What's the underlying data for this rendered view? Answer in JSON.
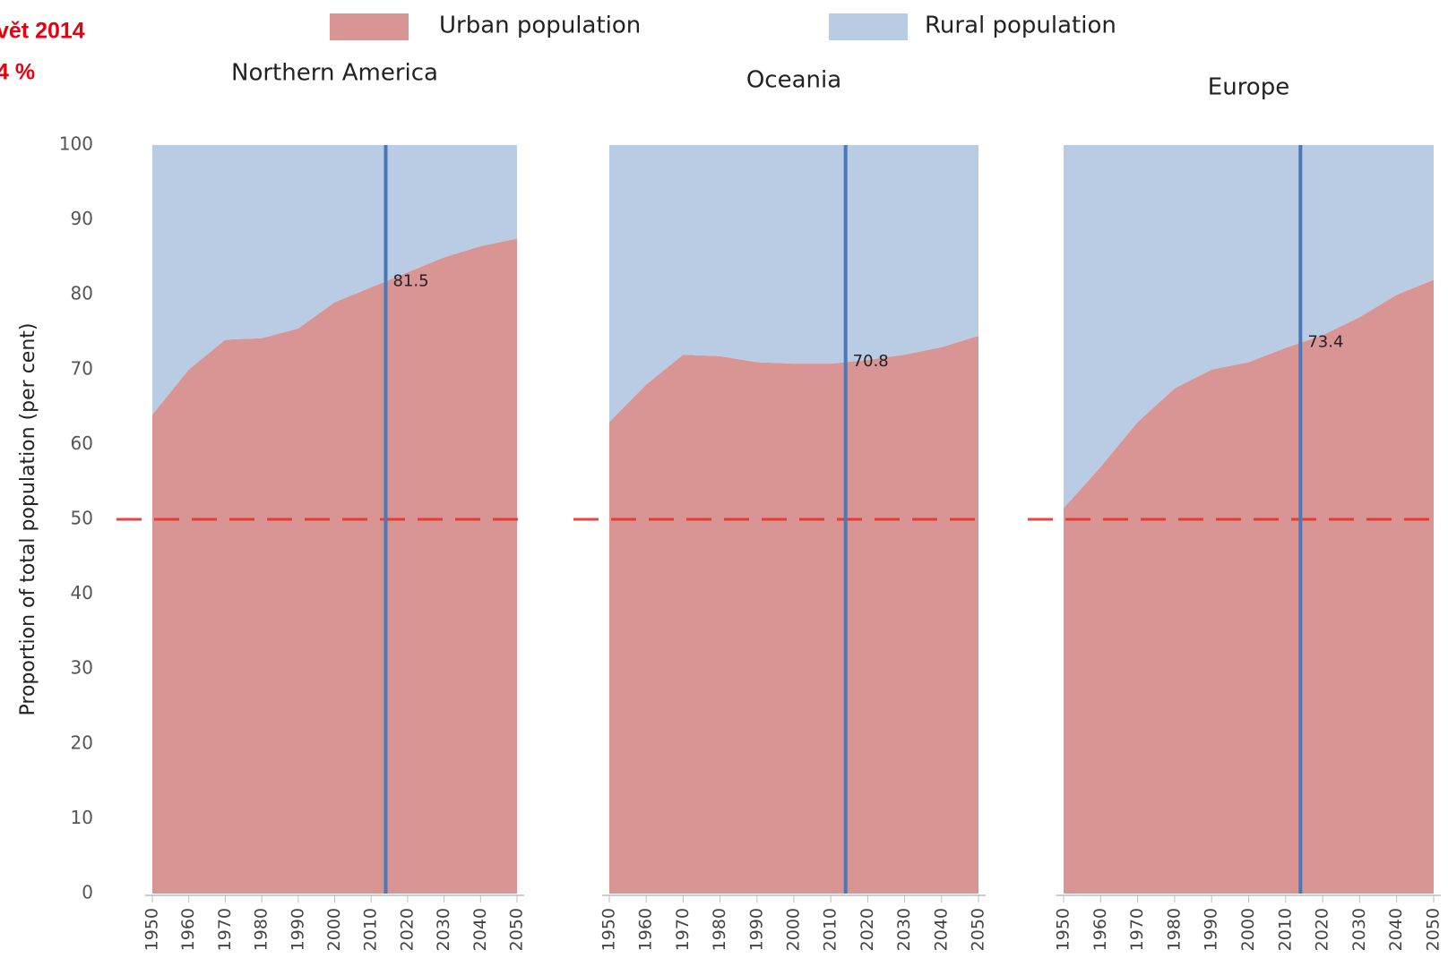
{
  "header": {
    "lines": [
      "vět 2014",
      "4 %"
    ]
  },
  "y_axis_label": "Proportion of total population (per cent)",
  "chart_data": [
    {
      "type": "area",
      "title": "Northern America",
      "x": [
        1950,
        1960,
        1970,
        1980,
        1990,
        2000,
        2010,
        2020,
        2030,
        2040,
        2050
      ],
      "series": [
        {
          "name": "Urban population",
          "color": "#d99494",
          "values": [
            64,
            70,
            74,
            74.2,
            75.5,
            79,
            81,
            83,
            85,
            86.5,
            87.5
          ]
        },
        {
          "name": "Rural population",
          "color": "#b9cce4",
          "values": [
            36,
            30,
            26,
            25.8,
            24.5,
            21,
            19,
            17,
            15,
            13.5,
            12.5
          ]
        }
      ],
      "xlim": [
        1950,
        2050
      ],
      "xticks": [
        1950,
        1960,
        1970,
        1980,
        1990,
        2000,
        2010,
        2020,
        2030,
        2040,
        2050
      ],
      "ylim": [
        0,
        100
      ],
      "yticks": [
        0,
        10,
        20,
        30,
        40,
        50,
        60,
        70,
        80,
        90,
        100
      ],
      "marker": {
        "x": 2014,
        "value": 81.5,
        "color": "#4a78b8"
      },
      "reference_line": {
        "value": 50,
        "color": "#e8332a"
      }
    },
    {
      "type": "area",
      "title": "Oceania",
      "x": [
        1950,
        1960,
        1970,
        1980,
        1990,
        2000,
        2010,
        2020,
        2030,
        2040,
        2050
      ],
      "series": [
        {
          "name": "Urban population",
          "color": "#d99494",
          "values": [
            63,
            68,
            72,
            71.8,
            71,
            70.8,
            70.8,
            71.3,
            72,
            73,
            74.5
          ]
        },
        {
          "name": "Rural population",
          "color": "#b9cce4",
          "values": [
            37,
            32,
            28,
            28.2,
            29,
            29.2,
            29.2,
            28.7,
            28,
            27,
            25.5
          ]
        }
      ],
      "xlim": [
        1950,
        2050
      ],
      "xticks": [
        1950,
        1960,
        1970,
        1980,
        1990,
        2000,
        2010,
        2020,
        2030,
        2040,
        2050
      ],
      "ylim": [
        0,
        100
      ],
      "marker": {
        "x": 2014,
        "value": 70.8,
        "color": "#4a78b8"
      },
      "reference_line": {
        "value": 50,
        "color": "#e8332a"
      }
    },
    {
      "type": "area",
      "title": "Europe",
      "x": [
        1950,
        1960,
        1970,
        1980,
        1990,
        2000,
        2010,
        2020,
        2030,
        2040,
        2050
      ],
      "series": [
        {
          "name": "Urban population",
          "color": "#d99494",
          "values": [
            51.5,
            57,
            63,
            67.5,
            70,
            71,
            72.9,
            74.6,
            77,
            80,
            82
          ]
        },
        {
          "name": "Rural population",
          "color": "#b9cce4",
          "values": [
            48.5,
            43,
            37,
            32.5,
            30,
            29,
            27.1,
            25.4,
            23,
            20,
            18
          ]
        }
      ],
      "xlim": [
        1950,
        2050
      ],
      "xticks": [
        1950,
        1960,
        1970,
        1980,
        1990,
        2000,
        2010,
        2020,
        2030,
        2040,
        2050
      ],
      "ylim": [
        0,
        100
      ],
      "marker": {
        "x": 2014,
        "value": 73.4,
        "color": "#4a78b8"
      },
      "reference_line": {
        "value": 50,
        "color": "#e8332a"
      }
    }
  ]
}
